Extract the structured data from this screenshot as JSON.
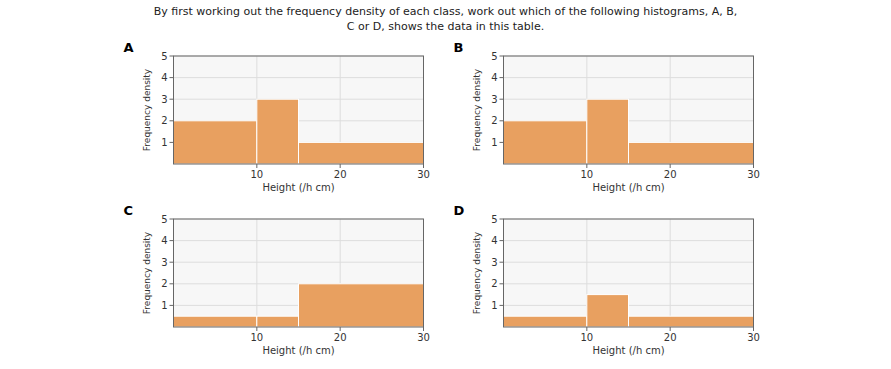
{
  "title": [
    "By first working out the frequency density of each class, work out which of the following histograms, A, B,",
    "C or D, shows the data in this table."
  ],
  "chart_data": [
    {
      "type": "histogram",
      "title": "A",
      "bins": [
        0,
        10,
        15,
        30
      ],
      "values": [
        2,
        3,
        1
      ],
      "color": "#E8A060",
      "xlabel": "Height (/h cm)",
      "ylabel": "Frequency density",
      "xlim": [
        0,
        30
      ],
      "ylim": [
        0,
        5
      ],
      "xticks": [
        10,
        20,
        30
      ],
      "yticks": [
        1,
        2,
        3,
        4,
        5
      ],
      "grid": true
    },
    {
      "type": "histogram",
      "title": "B",
      "bins": [
        0,
        10,
        15,
        30
      ],
      "values": [
        2,
        3,
        1
      ],
      "color": "#E8A060",
      "xlabel": "Height (/h cm)",
      "ylabel": "Frequency density",
      "xlim": [
        0,
        30
      ],
      "ylim": [
        0,
        5
      ],
      "xticks": [
        10,
        20,
        30
      ],
      "yticks": [
        1,
        2,
        3,
        4,
        5
      ],
      "grid": true
    },
    {
      "type": "histogram",
      "title": "C",
      "bins": [
        0,
        10,
        15,
        30
      ],
      "values": [
        0.5,
        0.5,
        2
      ],
      "color": "#E8A060",
      "xlabel": "Height (/h cm)",
      "ylabel": "Frequency density",
      "xlim": [
        0,
        30
      ],
      "ylim": [
        0,
        5
      ],
      "xticks": [
        10,
        20,
        30
      ],
      "yticks": [
        1,
        2,
        3,
        4,
        5
      ],
      "grid": true
    },
    {
      "type": "histogram",
      "title": "D",
      "bins": [
        0,
        10,
        15,
        30
      ],
      "values": [
        0.5,
        1.5,
        0.5
      ],
      "color": "#E8A060",
      "xlabel": "Height (/h cm)",
      "ylabel": "Frequency density",
      "xlim": [
        0,
        30
      ],
      "ylim": [
        0,
        5
      ],
      "xticks": [
        10,
        20,
        30
      ],
      "yticks": [
        1,
        2,
        3,
        4,
        5
      ],
      "grid": true
    }
  ]
}
